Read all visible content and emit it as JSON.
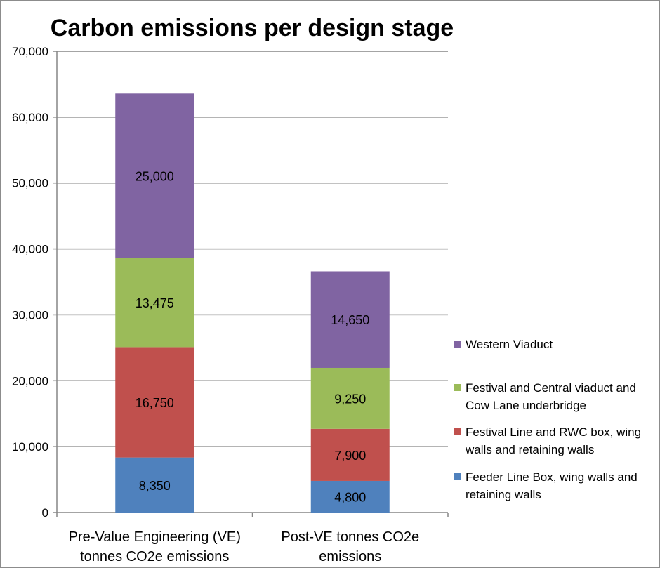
{
  "chart_data": {
    "type": "bar",
    "stacked": true,
    "title": "Carbon emissions per design stage",
    "xlabel": "",
    "ylabel": "",
    "ylim": [
      0,
      70000
    ],
    "yticks": [
      0,
      10000,
      20000,
      30000,
      40000,
      50000,
      60000,
      70000
    ],
    "ytick_labels": [
      "0",
      "10,000",
      "20,000",
      "30,000",
      "40,000",
      "50,000",
      "60,000",
      "70,000"
    ],
    "grid": true,
    "legend_position": "right",
    "categories": [
      [
        "Pre-Value Engineering (VE)",
        "tonnes CO2e emissions"
      ],
      [
        "Post-VE tonnes CO2e",
        "emissions"
      ]
    ],
    "series": [
      {
        "name": [
          "Feeder Line Box, wing walls and",
          "retaining walls"
        ],
        "color": "#4f81bd",
        "values": [
          8350,
          4800
        ],
        "labels": [
          "8,350",
          "4,800"
        ]
      },
      {
        "name": [
          "Festival Line and RWC box, wing",
          "walls and retaining walls"
        ],
        "color": "#c0504d",
        "values": [
          16750,
          7900
        ],
        "labels": [
          "16,750",
          "7,900"
        ]
      },
      {
        "name": [
          "Festival and Central viaduct and",
          "Cow Lane underbridge"
        ],
        "color": "#9bbb59",
        "values": [
          13475,
          9250
        ],
        "labels": [
          "13,475",
          "9,250"
        ]
      },
      {
        "name": [
          "Western Viaduct"
        ],
        "color": "#8064a2",
        "values": [
          25000,
          14650
        ],
        "labels": [
          "25,000",
          "14,650"
        ]
      }
    ]
  }
}
